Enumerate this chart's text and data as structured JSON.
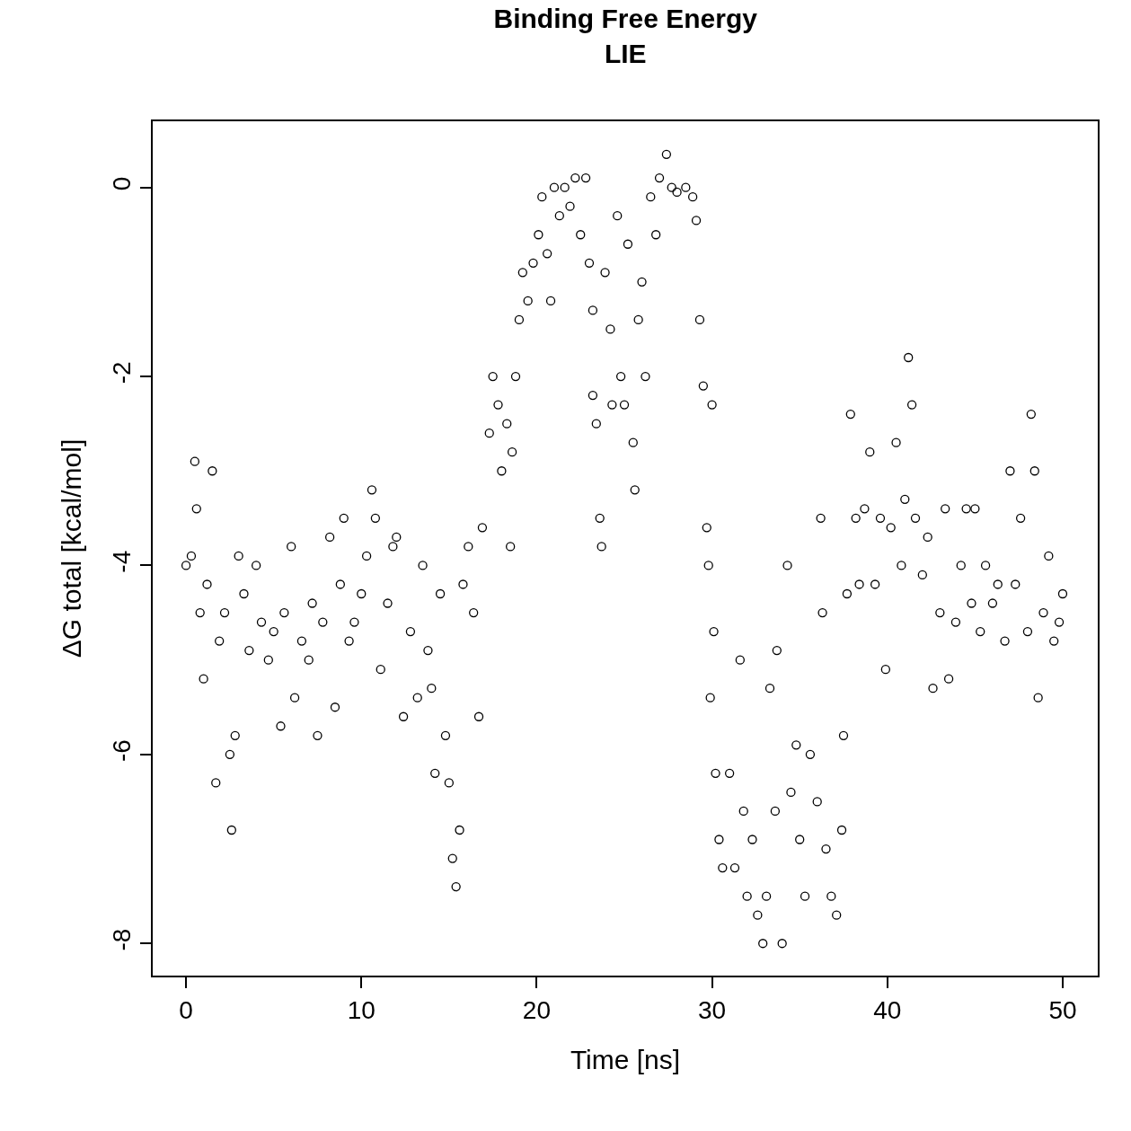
{
  "chart_data": {
    "type": "scatter",
    "title": "Binding Free Energy\nLIE",
    "xlabel": "Time [ns]",
    "ylabel": "ΔG total [kcal/mol]",
    "xlim": [
      -1.9,
      52.0
    ],
    "ylim": [
      -8.34,
      0.7
    ],
    "xticks": [
      0,
      10,
      20,
      30,
      40,
      50
    ],
    "yticks": [
      -8,
      -6,
      -4,
      -2,
      0
    ],
    "marker": "circle",
    "series": [
      {
        "color": "#000000",
        "x": [
          0,
          0.3,
          0.5,
          0.6,
          0.8,
          1.0,
          1.2,
          1.5,
          1.7,
          1.9,
          2.2,
          2.5,
          2.6,
          2.8,
          3.0,
          3.3,
          3.6,
          4.0,
          4.3,
          4.7,
          5.0,
          5.4,
          5.6,
          6.0,
          6.2,
          6.6,
          7.0,
          7.2,
          7.5,
          7.8,
          8.2,
          8.5,
          8.8,
          9.0,
          9.3,
          9.6,
          10.0,
          10.3,
          10.6,
          10.8,
          11.1,
          11.5,
          11.8,
          12.0,
          12.4,
          12.8,
          13.2,
          13.5,
          13.8,
          14.0,
          14.2,
          14.5,
          14.8,
          15.0,
          15.2,
          15.4,
          15.6,
          15.8,
          16.1,
          16.4,
          16.7,
          16.9,
          17.3,
          17.5,
          17.8,
          18.0,
          18.3,
          18.6,
          18.8,
          18.5,
          19.0,
          19.2,
          19.5,
          19.8,
          20.1,
          20.3,
          20.6,
          20.8,
          21.0,
          21.3,
          21.6,
          21.9,
          22.2,
          22.5,
          22.8,
          23.0,
          23.2,
          23.2,
          23.4,
          23.6,
          23.7,
          23.9,
          24.2,
          24.3,
          24.6,
          24.8,
          25.0,
          25.2,
          25.5,
          25.6,
          25.8,
          26.0,
          26.2,
          26.5,
          26.8,
          27.0,
          27.4,
          27.7,
          28.0,
          28.5,
          28.9,
          29.1,
          29.3,
          29.5,
          29.7,
          29.8,
          30.0,
          30.1,
          29.9,
          30.2,
          30.4,
          30.6,
          31.0,
          31.3,
          31.6,
          31.8,
          32.0,
          32.3,
          32.6,
          32.9,
          33.1,
          33.3,
          33.6,
          33.7,
          34.0,
          34.3,
          34.5,
          34.8,
          35.0,
          35.3,
          35.6,
          36.0,
          36.2,
          36.3,
          36.5,
          36.8,
          37.1,
          37.4,
          37.5,
          37.7,
          37.9,
          38.2,
          38.4,
          38.7,
          39.0,
          39.3,
          39.6,
          39.9,
          40.2,
          40.5,
          40.8,
          41.0,
          41.2,
          41.4,
          41.6,
          42.0,
          42.3,
          42.6,
          43.0,
          43.3,
          43.5,
          43.9,
          44.2,
          44.5,
          44.8,
          45.0,
          45.3,
          45.6,
          46.0,
          46.3,
          46.7,
          47.0,
          47.3,
          47.6,
          48.0,
          48.2,
          48.4,
          48.6,
          48.9,
          49.2,
          49.5,
          49.8,
          50.0
        ],
        "values": [
          -4.0,
          -3.9,
          -2.9,
          -3.4,
          -4.5,
          -5.2,
          -4.2,
          -3.0,
          -6.3,
          -4.8,
          -4.5,
          -6.0,
          -6.8,
          -5.8,
          -3.9,
          -4.3,
          -4.9,
          -4.0,
          -4.6,
          -5.0,
          -4.7,
          -5.7,
          -4.5,
          -3.8,
          -5.4,
          -4.8,
          -5.0,
          -4.4,
          -5.8,
          -4.6,
          -3.7,
          -5.5,
          -4.2,
          -3.5,
          -4.8,
          -4.6,
          -4.3,
          -3.9,
          -3.2,
          -3.5,
          -5.1,
          -4.4,
          -3.8,
          -3.7,
          -5.6,
          -4.7,
          -5.4,
          -4.0,
          -4.9,
          -5.3,
          -6.2,
          -4.3,
          -5.8,
          -6.3,
          -7.1,
          -7.4,
          -6.8,
          -4.2,
          -3.8,
          -4.5,
          -5.6,
          -3.6,
          -2.6,
          -2.0,
          -2.3,
          -3.0,
          -2.5,
          -2.8,
          -2.0,
          -3.8,
          -1.4,
          -0.9,
          -1.2,
          -0.8,
          -0.5,
          -0.1,
          -0.7,
          -1.2,
          0.0,
          -0.3,
          0.0,
          -0.2,
          0.1,
          -0.5,
          0.1,
          -0.8,
          -1.3,
          -2.2,
          -2.5,
          -3.5,
          -3.8,
          -0.9,
          -1.5,
          -2.3,
          -0.3,
          -2.0,
          -2.3,
          -0.6,
          -2.7,
          -3.2,
          -1.4,
          -1.0,
          -2.0,
          -0.1,
          -0.5,
          0.1,
          0.35,
          0.0,
          -0.05,
          0.0,
          -0.1,
          -0.35,
          -1.4,
          -2.1,
          -3.6,
          -4.0,
          -2.3,
          -4.7,
          -5.4,
          -6.2,
          -6.9,
          -7.2,
          -6.2,
          -7.2,
          -5.0,
          -6.6,
          -7.5,
          -6.9,
          -7.7,
          -8.0,
          -7.5,
          -5.3,
          -6.6,
          -4.9,
          -8.0,
          -4.0,
          -6.4,
          -5.9,
          -6.9,
          -7.5,
          -6.0,
          -6.5,
          -3.5,
          -4.5,
          -7.0,
          -7.5,
          -7.7,
          -6.8,
          -5.8,
          -4.3,
          -2.4,
          -3.5,
          -4.2,
          -3.4,
          -2.8,
          -4.2,
          -3.5,
          -5.1,
          -3.6,
          -2.7,
          -4.0,
          -3.3,
          -1.8,
          -2.3,
          -3.5,
          -4.1,
          -3.7,
          -5.3,
          -4.5,
          -3.4,
          -5.2,
          -4.6,
          -4.0,
          -3.4,
          -4.4,
          -3.4,
          -4.7,
          -4.0,
          -4.4,
          -4.2,
          -4.8,
          -3.0,
          -4.2,
          -3.5,
          -4.7,
          -2.4,
          -3.0,
          -5.4,
          -4.5,
          -3.9,
          -4.8,
          -4.6,
          -4.3
        ]
      }
    ]
  }
}
